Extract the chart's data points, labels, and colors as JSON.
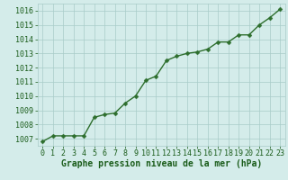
{
  "x": [
    0,
    1,
    2,
    3,
    4,
    5,
    6,
    7,
    8,
    9,
    10,
    11,
    12,
    13,
    14,
    15,
    16,
    17,
    18,
    19,
    20,
    21,
    22,
    23
  ],
  "y": [
    1006.8,
    1007.2,
    1007.2,
    1007.2,
    1007.2,
    1008.5,
    1008.7,
    1008.8,
    1009.5,
    1010.0,
    1011.1,
    1011.4,
    1012.5,
    1012.8,
    1013.0,
    1013.1,
    1013.3,
    1013.8,
    1013.8,
    1014.3,
    1014.3,
    1015.0,
    1015.5,
    1016.1
  ],
  "line_color": "#2d6e2d",
  "marker": "D",
  "marker_size": 2.5,
  "linewidth": 1.0,
  "bg_color": "#d4ecea",
  "grid_color": "#a8ccc8",
  "xlabel": "Graphe pression niveau de la mer (hPa)",
  "xlabel_color": "#1a5c1a",
  "xlabel_fontsize": 7.0,
  "tick_color": "#1a5c1a",
  "tick_fontsize": 6.0,
  "ylim": [
    1006.5,
    1016.5
  ],
  "xlim": [
    -0.5,
    23.5
  ],
  "yticks": [
    1007,
    1008,
    1009,
    1010,
    1011,
    1012,
    1013,
    1014,
    1015,
    1016
  ],
  "xticks": [
    0,
    1,
    2,
    3,
    4,
    5,
    6,
    7,
    8,
    9,
    10,
    11,
    12,
    13,
    14,
    15,
    16,
    17,
    18,
    19,
    20,
    21,
    22,
    23
  ]
}
